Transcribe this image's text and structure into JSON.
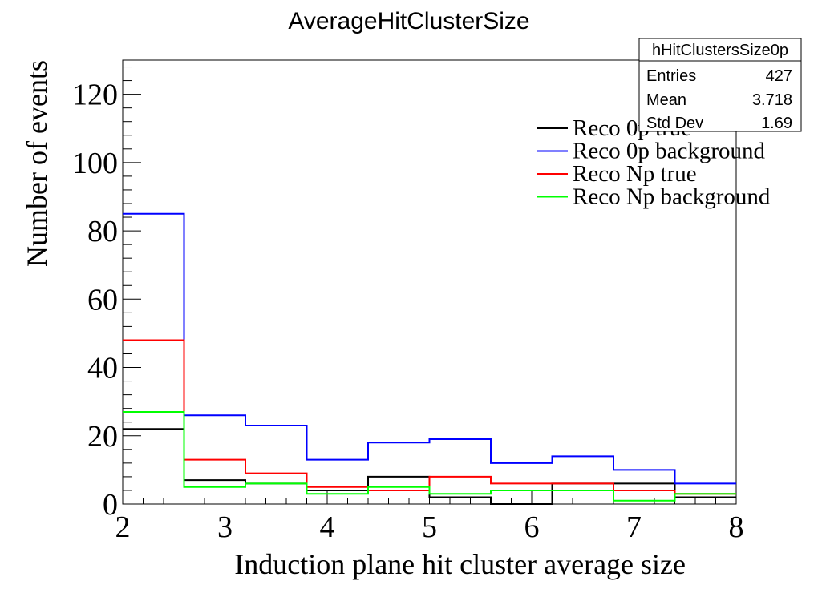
{
  "chart_data": {
    "type": "histogram",
    "title": "AverageHitClusterSize",
    "xlabel": "Induction plane hit cluster average size",
    "ylabel": "Number of events",
    "xlim": [
      2,
      8
    ],
    "ylim": [
      0,
      130
    ],
    "x_ticks": [
      "2",
      "3",
      "4",
      "5",
      "6",
      "7",
      "8"
    ],
    "y_ticks": [
      "0",
      "20",
      "40",
      "60",
      "80",
      "100",
      "120"
    ],
    "bin_edges": [
      2.0,
      2.6,
      3.2,
      3.8,
      4.4,
      5.0,
      5.6,
      6.2,
      6.8,
      7.4,
      8.0
    ],
    "series": [
      {
        "name": "Reco 0p true",
        "color": "#000000",
        "values": [
          22,
          7,
          6,
          4,
          8,
          2,
          0,
          6,
          6,
          2
        ]
      },
      {
        "name": "Reco 0p background",
        "color": "#0000ff",
        "values": [
          85,
          26,
          23,
          13,
          18,
          19,
          12,
          14,
          10,
          6
        ]
      },
      {
        "name": "Reco Np true",
        "color": "#ff0000",
        "values": [
          48,
          13,
          9,
          5,
          4,
          8,
          6,
          6,
          4,
          3
        ]
      },
      {
        "name": "Reco Np background",
        "color": "#00ff00",
        "values": [
          27,
          5,
          6,
          3,
          5,
          3,
          4,
          4,
          1,
          3
        ]
      }
    ],
    "legend_position": "top-right",
    "stats": {
      "name": "hHitClustersSize0p",
      "rows": [
        {
          "label": "Entries",
          "value": "427"
        },
        {
          "label": "Mean",
          "value": "3.718"
        },
        {
          "label": "Std Dev",
          "value": "1.69"
        }
      ]
    },
    "grid": false
  }
}
